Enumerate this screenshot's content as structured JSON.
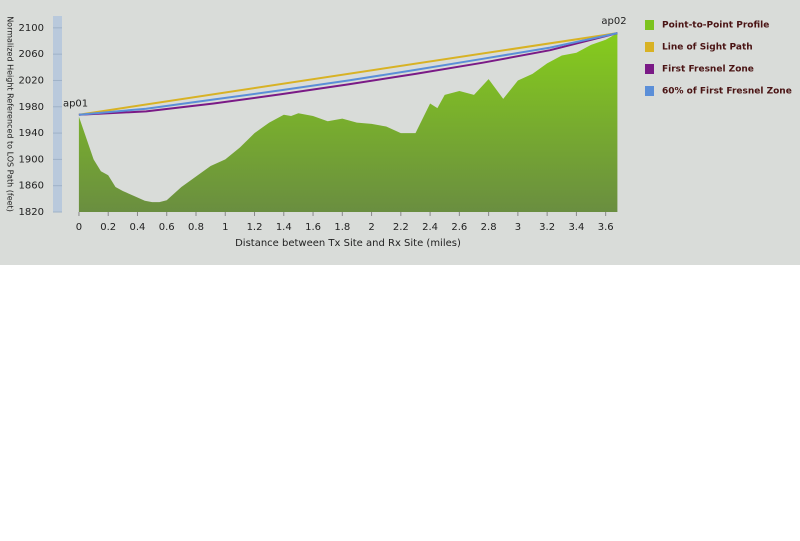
{
  "chart_data": {
    "type": "area",
    "xlabel": "Distance between Tx Site and Rx Site (miles)",
    "ylabel": "Normalized Height Referenced to LOS Path (feet)",
    "xlim": [
      -0.15,
      3.78
    ],
    "ylim": [
      1820,
      2118
    ],
    "xticks": [
      0,
      0.2,
      0.4,
      0.6,
      0.8,
      1,
      1.2,
      1.4,
      1.6,
      1.8,
      2,
      2.2,
      2.4,
      2.6,
      2.8,
      3,
      3.2,
      3.4,
      3.6
    ],
    "yticks": [
      1820,
      1860,
      1900,
      1940,
      1980,
      2020,
      2060,
      2100
    ],
    "legend": "right",
    "annotations": [
      "ap01",
      "ap02"
    ],
    "series": [
      {
        "name": "Point-to-Point Profile",
        "color": "#7cc31e",
        "x": [
          0,
          0.1,
          0.15,
          0.2,
          0.25,
          0.3,
          0.4,
          0.45,
          0.5,
          0.55,
          0.6,
          0.7,
          0.8,
          0.9,
          1.0,
          1.1,
          1.2,
          1.3,
          1.4,
          1.45,
          1.5,
          1.6,
          1.7,
          1.8,
          1.9,
          2.0,
          2.1,
          2.2,
          2.3,
          2.4,
          2.45,
          2.5,
          2.6,
          2.7,
          2.8,
          2.9,
          3.0,
          3.1,
          3.2,
          3.3,
          3.4,
          3.5,
          3.6,
          3.68
        ],
        "values": [
          1965,
          1900,
          1882,
          1876,
          1858,
          1852,
          1842,
          1837,
          1835,
          1835,
          1838,
          1858,
          1874,
          1890,
          1900,
          1918,
          1940,
          1956,
          1968,
          1966,
          1970,
          1966,
          1958,
          1962,
          1956,
          1954,
          1950,
          1940,
          1940,
          1985,
          1978,
          1998,
          2004,
          1998,
          2022,
          1992,
          2020,
          2030,
          2046,
          2058,
          2062,
          2074,
          2082,
          2092
        ]
      },
      {
        "name": "Line of Sight Path",
        "color": "#d8b224",
        "x": [
          0,
          3.68
        ],
        "values": [
          1968,
          2092
        ]
      },
      {
        "name": "First Fresnel Zone",
        "color": "#7a1a86",
        "x": [
          0,
          0.46,
          0.92,
          1.38,
          1.84,
          2.3,
          2.76,
          3.22,
          3.68
        ],
        "values": [
          1968,
          1973,
          1985,
          1999,
          2014,
          2030,
          2047,
          2066,
          2092
        ]
      },
      {
        "name": "60% of First Fresnel Zone",
        "color": "#5b8fd8",
        "x": [
          0,
          0.46,
          0.92,
          1.38,
          1.84,
          2.3,
          2.76,
          3.22,
          3.68
        ],
        "values": [
          1968,
          1977,
          1991,
          2005,
          2020,
          2036,
          2053,
          2070,
          2092
        ]
      }
    ]
  }
}
